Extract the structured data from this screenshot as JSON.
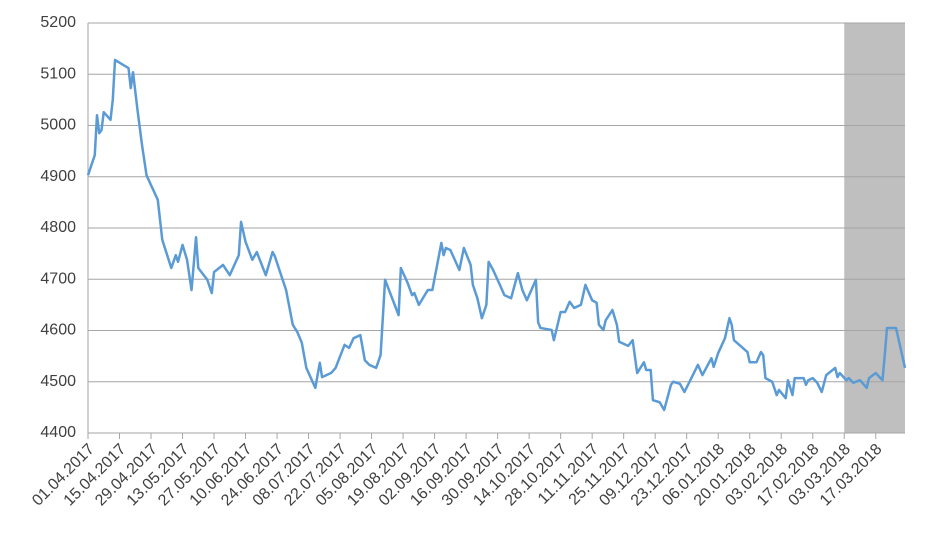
{
  "chart_data": {
    "type": "line",
    "x": [
      "01.04.2017",
      "04.04.2017",
      "05.04.2017",
      "06.04.2017",
      "07.04.2017",
      "08.04.2017",
      "11.04.2017",
      "12.04.2017",
      "13.04.2017",
      "19.04.2017",
      "20.04.2017",
      "21.04.2017",
      "23.04.2017",
      "25.04.2017",
      "27.04.2017",
      "02.05.2017",
      "04.05.2017",
      "08.05.2017",
      "10.05.2017",
      "11.05.2017",
      "13.05.2017",
      "15.05.2017",
      "17.05.2017",
      "19.05.2017",
      "20.05.2017",
      "24.05.2017",
      "26.05.2017",
      "27.05.2017",
      "31.05.2017",
      "03.06.2017",
      "07.06.2017",
      "08.06.2017",
      "10.06.2017",
      "13.06.2017",
      "15.06.2017",
      "19.06.2017",
      "22.06.2017",
      "23.06.2017",
      "28.06.2017",
      "01.07.2017",
      "03.07.2017",
      "05.07.2017",
      "07.07.2017",
      "11.07.2017",
      "12.07.2017",
      "13.07.2017",
      "14.07.2017",
      "18.07.2017",
      "20.07.2017",
      "24.07.2017",
      "26.07.2017",
      "28.07.2017",
      "31.07.2017",
      "02.08.2017",
      "04.08.2017",
      "07.08.2017",
      "09.08.2017",
      "11.08.2017",
      "17.08.2017",
      "18.08.2017",
      "21.08.2017",
      "23.08.2017",
      "24.08.2017",
      "26.08.2017",
      "30.08.2017",
      "01.09.2017",
      "05.09.2017",
      "06.09.2017",
      "07.09.2017",
      "09.09.2017",
      "13.09.2017",
      "15.09.2017",
      "18.09.2017",
      "19.09.2017",
      "21.09.2017",
      "23.09.2017",
      "25.09.2017",
      "26.09.2017",
      "28.09.2017",
      "01.10.2017",
      "03.10.2017",
      "06.10.2017",
      "09.10.2017",
      "11.10.2017",
      "13.10.2017",
      "14.10.2017",
      "17.10.2017",
      "18.10.2017",
      "19.10.2017",
      "24.10.2017",
      "25.10.2017",
      "28.10.2017",
      "30.10.2017",
      "01.11.2017",
      "03.11.2017",
      "06.11.2017",
      "08.11.2017",
      "09.11.2017",
      "11.11.2017",
      "13.11.2017",
      "14.11.2017",
      "16.11.2017",
      "17.11.2017",
      "20.11.2017",
      "22.11.2017",
      "23.11.2017",
      "27.11.2017",
      "29.11.2017",
      "01.12.2017",
      "04.12.2017",
      "05.12.2017",
      "07.12.2017",
      "08.12.2017",
      "11.12.2017",
      "13.12.2017",
      "16.12.2017",
      "17.12.2017",
      "20.12.2017",
      "22.12.2017",
      "28.12.2017",
      "30.12.2017",
      "03.01.2018",
      "04.01.2018",
      "06.01.2018",
      "09.01.2018",
      "11.01.2018",
      "12.01.2018",
      "13.01.2018",
      "19.01.2018",
      "20.01.2018",
      "23.01.2018",
      "25.01.2018",
      "26.01.2018",
      "27.01.2018",
      "30.01.2018",
      "01.02.2018",
      "02.02.2018",
      "05.02.2018",
      "06.02.2018",
      "08.02.2018",
      "09.02.2018",
      "13.02.2018",
      "14.02.2018",
      "15.02.2018",
      "17.02.2018",
      "19.02.2018",
      "21.02.2018",
      "23.02.2018",
      "27.02.2018",
      "28.02.2018",
      "01.03.2018",
      "04.03.2018",
      "05.03.2018",
      "07.03.2018",
      "10.03.2018",
      "13.03.2018",
      "14.03.2018",
      "17.03.2018",
      "20.03.2018",
      "21.03.2018",
      "22.03.2018",
      "26.03.2018",
      "30.03.2018"
    ],
    "values": [
      4903,
      4942,
      5020,
      4985,
      4991,
      5026,
      5011,
      5050,
      5128,
      5112,
      5073,
      5104,
      5030,
      4962,
      4903,
      4855,
      4777,
      4722,
      4747,
      4734,
      4767,
      4738,
      4679,
      4782,
      4722,
      4699,
      4673,
      4714,
      4728,
      4708,
      4747,
      4812,
      4773,
      4738,
      4753,
      4708,
      4753,
      4745,
      4679,
      4611,
      4597,
      4576,
      4527,
      4488,
      4513,
      4537,
      4509,
      4517,
      4527,
      4572,
      4566,
      4585,
      4591,
      4542,
      4533,
      4527,
      4552,
      4699,
      4630,
      4722,
      4693,
      4669,
      4673,
      4650,
      4679,
      4679,
      4771,
      4747,
      4761,
      4757,
      4718,
      4761,
      4728,
      4689,
      4663,
      4624,
      4650,
      4734,
      4718,
      4689,
      4669,
      4663,
      4712,
      4679,
      4659,
      4669,
      4699,
      4616,
      4605,
      4601,
      4581,
      4636,
      4636,
      4656,
      4644,
      4650,
      4689,
      4679,
      4659,
      4654,
      4611,
      4601,
      4620,
      4640,
      4611,
      4578,
      4570,
      4581,
      4517,
      4538,
      4523,
      4523,
      4464,
      4460,
      4445,
      4494,
      4500,
      4496,
      4480,
      4533,
      4513,
      4546,
      4529,
      4556,
      4585,
      4624,
      4611,
      4581,
      4558,
      4538,
      4538,
      4558,
      4552,
      4507,
      4500,
      4474,
      4484,
      4468,
      4503,
      4474,
      4507,
      4507,
      4494,
      4503,
      4507,
      4498,
      4480,
      4513,
      4527,
      4509,
      4517,
      4503,
      4507,
      4498,
      4503,
      4488,
      4507,
      4517,
      4503,
      4552,
      4605,
      4605,
      4527
    ],
    "color": "#5b9bd5",
    "xlim": [
      "01.04.2017",
      "30.03.2018"
    ],
    "xticks": [
      "01.04.2017",
      "15.04.2017",
      "29.04.2017",
      "13.05.2017",
      "27.05.2017",
      "10.06.2017",
      "24.06.2017",
      "08.07.2017",
      "22.07.2017",
      "05.08.2017",
      "19.08.2017",
      "02.09.2017",
      "16.09.2017",
      "30.09.2017",
      "14.10.2017",
      "28.10.2017",
      "11.11.2017",
      "25.11.2017",
      "09.12.2017",
      "23.12.2017",
      "06.01.2018",
      "20.01.2018",
      "03.02.2018",
      "17.02.2018",
      "03.03.2018",
      "17.03.2018"
    ],
    "ylim": [
      4400,
      5200
    ],
    "yticks": [
      4400,
      4500,
      4600,
      4700,
      4800,
      4900,
      5000,
      5100,
      5200
    ],
    "grid": true,
    "shaded_range": [
      "03.03.2018",
      "30.03.2018"
    ],
    "shaded_color": "#bfbfbf"
  }
}
